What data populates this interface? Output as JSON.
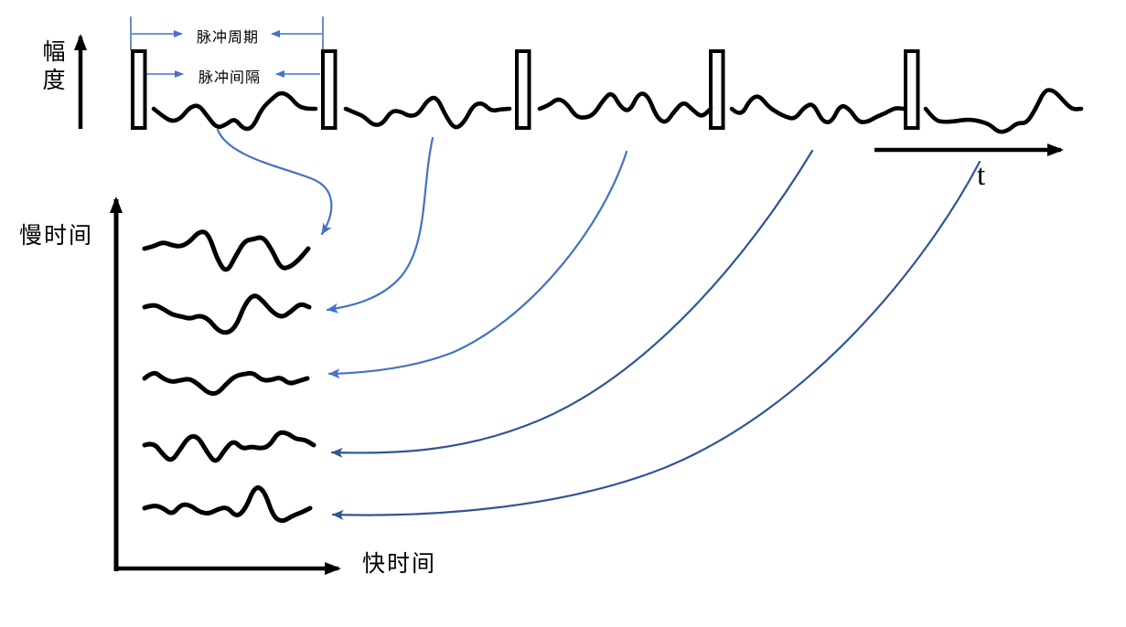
{
  "labels": {
    "amplitude_axis": "幅度",
    "pulse_period": "脉冲周期",
    "pulse_interval": "脉冲间隔",
    "time_axis": "t",
    "slow_time_axis": "慢时间",
    "fast_time_axis": "快时间"
  },
  "counts": {
    "pulses": 5,
    "echo_segments": 5,
    "echo_rows": 5
  },
  "colors": {
    "ink": "#000000",
    "annotation_blue": "#4472C4",
    "mapping_blue_light": "#4472C4",
    "mapping_blue_dark": "#2F5597",
    "pulse_fill": "#ffffff"
  }
}
